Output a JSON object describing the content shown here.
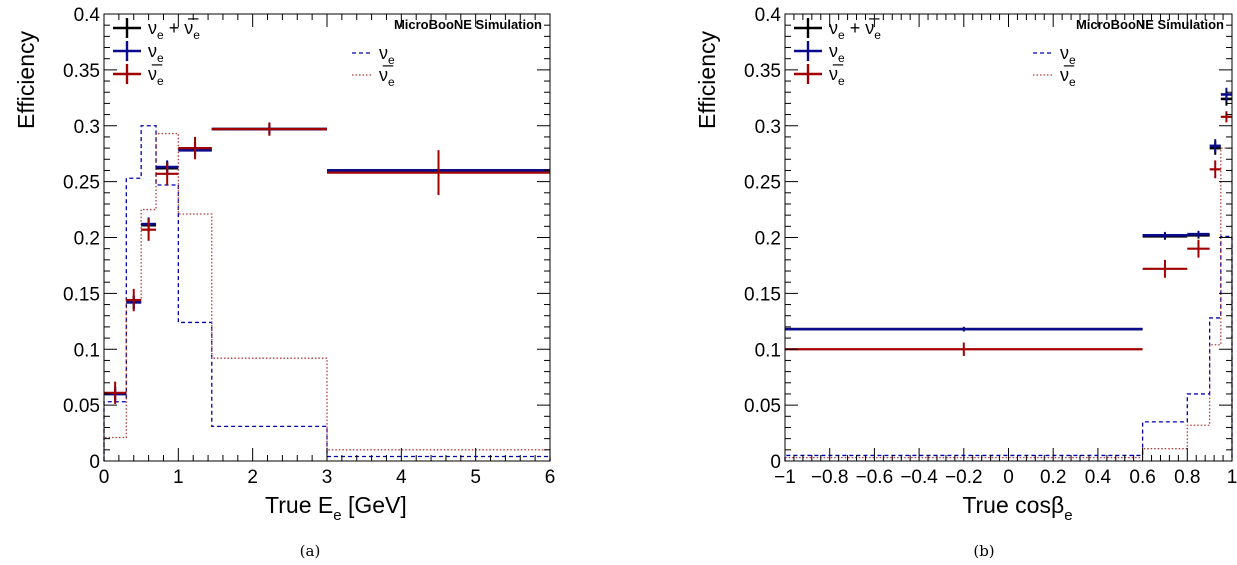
{
  "colors": {
    "all": "#000000",
    "nue": "#0a0a8c",
    "nuebar": "#a00000",
    "dashed_blue": "#0000b0",
    "dotted_red": "#b43c3c"
  },
  "chart_data": [
    {
      "type": "histogram",
      "annotation": "MicroBooNE Simulation",
      "caption": "(a)",
      "xlabel_main": "True E",
      "xlabel_sub": "e",
      "xlabel_tail": " [GeV]",
      "ylabel": "Efficiency",
      "xlim": [
        0,
        6
      ],
      "ylim": [
        0,
        0.4
      ],
      "x_ticks": [
        0,
        1,
        2,
        3,
        4,
        5,
        6
      ],
      "x_tick_labels": [
        "0",
        "1",
        "2",
        "3",
        "4",
        "5",
        "6"
      ],
      "y_ticks": [
        0,
        0.05,
        0.1,
        0.15,
        0.2,
        0.25,
        0.3,
        0.35,
        0.4
      ],
      "y_tick_labels": [
        "0",
        "0.05",
        "0.1",
        "0.15",
        "0.2",
        "0.25",
        "0.3",
        "0.35",
        "0.4"
      ],
      "legend_left": [
        {
          "key": "all",
          "label": "ν",
          "sub": "e",
          "tail": " + ",
          "label2": "ν̅",
          "sub2": "e"
        },
        {
          "key": "nue",
          "label": "ν",
          "sub": "e"
        },
        {
          "key": "nuebar",
          "label": "ν̅",
          "sub": "e"
        }
      ],
      "legend_right": [
        {
          "key": "dashed_blue",
          "label": "ν",
          "sub": "e"
        },
        {
          "key": "dotted_red",
          "label": "ν̅",
          "sub": "e"
        }
      ],
      "efficiency_series": [
        {
          "key": "all",
          "points": [
            {
              "x0": 0,
              "x1": 0.3,
              "y": 0.06,
              "err": 0.006
            },
            {
              "x0": 0.3,
              "x1": 0.5,
              "y": 0.142,
              "err": 0.006
            },
            {
              "x0": 0.5,
              "x1": 0.7,
              "y": 0.211,
              "err": 0.006
            },
            {
              "x0": 0.7,
              "x1": 1.0,
              "y": 0.262,
              "err": 0.006
            },
            {
              "x0": 1.0,
              "x1": 1.45,
              "y": 0.279,
              "err": 0.006
            },
            {
              "x0": 1.45,
              "x1": 3.0,
              "y": 0.297,
              "err": 0.005
            },
            {
              "x0": 3.0,
              "x1": 6.0,
              "y": 0.26,
              "err": 0.018
            }
          ]
        },
        {
          "key": "nue",
          "points": [
            {
              "x0": 0,
              "x1": 0.3,
              "y": 0.06,
              "err": 0.006
            },
            {
              "x0": 0.3,
              "x1": 0.5,
              "y": 0.142,
              "err": 0.006
            },
            {
              "x0": 0.5,
              "x1": 0.7,
              "y": 0.212,
              "err": 0.006
            },
            {
              "x0": 0.7,
              "x1": 1.0,
              "y": 0.263,
              "err": 0.006
            },
            {
              "x0": 1.0,
              "x1": 1.45,
              "y": 0.278,
              "err": 0.006
            },
            {
              "x0": 1.45,
              "x1": 3.0,
              "y": 0.297,
              "err": 0.005
            },
            {
              "x0": 3.0,
              "x1": 6.0,
              "y": 0.26,
              "err": 0.018
            }
          ]
        },
        {
          "key": "nuebar",
          "points": [
            {
              "x0": 0,
              "x1": 0.3,
              "y": 0.061,
              "err": 0.01
            },
            {
              "x0": 0.3,
              "x1": 0.5,
              "y": 0.144,
              "err": 0.01
            },
            {
              "x0": 0.5,
              "x1": 0.7,
              "y": 0.207,
              "err": 0.01
            },
            {
              "x0": 0.7,
              "x1": 1.0,
              "y": 0.257,
              "err": 0.01
            },
            {
              "x0": 1.0,
              "x1": 1.45,
              "y": 0.28,
              "err": 0.01
            },
            {
              "x0": 1.45,
              "x1": 3.0,
              "y": 0.297,
              "err": 0.006
            },
            {
              "x0": 3.0,
              "x1": 6.0,
              "y": 0.258,
              "err": 0.02
            }
          ]
        }
      ],
      "shape_series": [
        {
          "key": "dashed_blue",
          "dash": "4,3",
          "edges": [
            0,
            0.3,
            0.5,
            0.7,
            1.0,
            1.45,
            3.0,
            6.0
          ],
          "values": [
            0.053,
            0.253,
            0.3,
            0.247,
            0.124,
            0.031,
            0.004
          ]
        },
        {
          "key": "dotted_red",
          "dash": "1.5,2",
          "edges": [
            0,
            0.3,
            0.5,
            0.7,
            1.0,
            1.45,
            3.0,
            6.0
          ],
          "values": [
            0.021,
            0.144,
            0.225,
            0.293,
            0.221,
            0.092,
            0.01
          ]
        }
      ]
    },
    {
      "type": "histogram",
      "annotation": "MicroBooNE Simulation",
      "caption": "(b)",
      "xlabel_main": "True cosβ",
      "xlabel_sub": "e",
      "xlabel_tail": "",
      "ylabel": "Efficiency",
      "xlim": [
        -1,
        1
      ],
      "ylim": [
        0,
        0.4
      ],
      "x_ticks": [
        -1,
        -0.8,
        -0.6,
        -0.4,
        -0.2,
        0,
        0.2,
        0.4,
        0.6,
        0.8,
        1
      ],
      "x_tick_labels": [
        "−1",
        "−0.8",
        "−0.6",
        "−0.4",
        "−0.2",
        "0",
        "0.2",
        "0.4",
        "0.6",
        "0.8",
        "1"
      ],
      "y_ticks": [
        0,
        0.05,
        0.1,
        0.15,
        0.2,
        0.25,
        0.3,
        0.35,
        0.4
      ],
      "y_tick_labels": [
        "0",
        "0.05",
        "0.1",
        "0.15",
        "0.2",
        "0.25",
        "0.3",
        "0.35",
        "0.4"
      ],
      "legend_left": [
        {
          "key": "all",
          "label": "ν",
          "sub": "e",
          "tail": " + ",
          "label2": "ν̅",
          "sub2": "e"
        },
        {
          "key": "nue",
          "label": "ν",
          "sub": "e"
        },
        {
          "key": "nuebar",
          "label": "ν̅",
          "sub": "e"
        }
      ],
      "legend_right": [
        {
          "key": "dashed_blue",
          "label": "ν",
          "sub": "e"
        },
        {
          "key": "dotted_red",
          "label": "ν̅",
          "sub": "e"
        }
      ],
      "efficiency_series": [
        {
          "key": "all",
          "points": [
            {
              "x0": -1.0,
              "x1": 0.6,
              "y": 0.118,
              "err": 0.002
            },
            {
              "x0": 0.6,
              "x1": 0.8,
              "y": 0.201,
              "err": 0.003
            },
            {
              "x0": 0.8,
              "x1": 0.9,
              "y": 0.202,
              "err": 0.003
            },
            {
              "x0": 0.9,
              "x1": 0.95,
              "y": 0.28,
              "err": 0.006
            },
            {
              "x0": 0.95,
              "x1": 1.0,
              "y": 0.324,
              "err": 0.006
            }
          ]
        },
        {
          "key": "nue",
          "points": [
            {
              "x0": -1.0,
              "x1": 0.6,
              "y": 0.118,
              "err": 0.002
            },
            {
              "x0": 0.6,
              "x1": 0.8,
              "y": 0.202,
              "err": 0.003
            },
            {
              "x0": 0.8,
              "x1": 0.9,
              "y": 0.203,
              "err": 0.003
            },
            {
              "x0": 0.9,
              "x1": 0.95,
              "y": 0.282,
              "err": 0.006
            },
            {
              "x0": 0.95,
              "x1": 1.0,
              "y": 0.328,
              "err": 0.006
            }
          ]
        },
        {
          "key": "nuebar",
          "points": [
            {
              "x0": -1.0,
              "x1": 0.6,
              "y": 0.1,
              "err": 0.006
            },
            {
              "x0": 0.6,
              "x1": 0.8,
              "y": 0.172,
              "err": 0.008
            },
            {
              "x0": 0.8,
              "x1": 0.9,
              "y": 0.19,
              "err": 0.008
            },
            {
              "x0": 0.9,
              "x1": 0.95,
              "y": 0.261,
              "err": 0.008
            },
            {
              "x0": 0.95,
              "x1": 1.0,
              "y": 0.308,
              "err": 0.005
            }
          ]
        }
      ],
      "shape_series": [
        {
          "key": "dashed_blue",
          "dash": "4,3",
          "edges": [
            -1.0,
            0.6,
            0.8,
            0.9,
            0.95,
            1.0
          ],
          "values": [
            0.005,
            0.035,
            0.06,
            0.128,
            0.201
          ]
        },
        {
          "key": "dotted_red",
          "dash": "1.5,2",
          "edges": [
            -1.0,
            0.6,
            0.8,
            0.9,
            0.95,
            1.0
          ],
          "values": [
            0.003,
            0.011,
            0.032,
            0.104,
            0.28
          ]
        }
      ]
    }
  ]
}
